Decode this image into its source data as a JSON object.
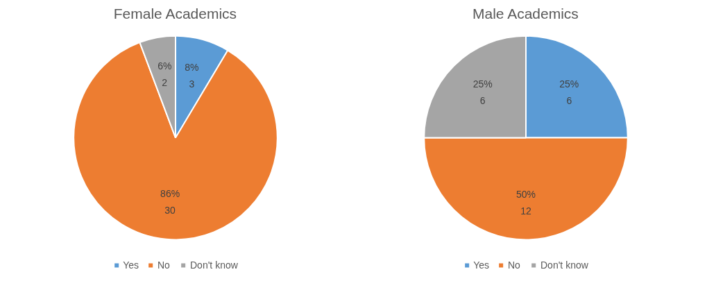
{
  "chart_data": [
    {
      "type": "pie",
      "title": "Female Academics",
      "categories": [
        "Yes",
        "No",
        "Don't know"
      ],
      "values": [
        3,
        30,
        2
      ],
      "colors": [
        "#5b9bd5",
        "#ed7d31",
        "#a5a5a5"
      ],
      "value_labels": [
        "8%\n3",
        "86%\n30",
        "6%\n2"
      ],
      "legend": "bottom"
    },
    {
      "type": "pie",
      "title": "Male Academics",
      "categories": [
        "Yes",
        "No",
        "Don't know"
      ],
      "values": [
        6,
        12,
        6
      ],
      "colors": [
        "#5b9bd5",
        "#ed7d31",
        "#a5a5a5"
      ],
      "value_labels": [
        "25%\n6",
        "50%\n12",
        "25%\n6"
      ],
      "legend": "bottom"
    }
  ]
}
